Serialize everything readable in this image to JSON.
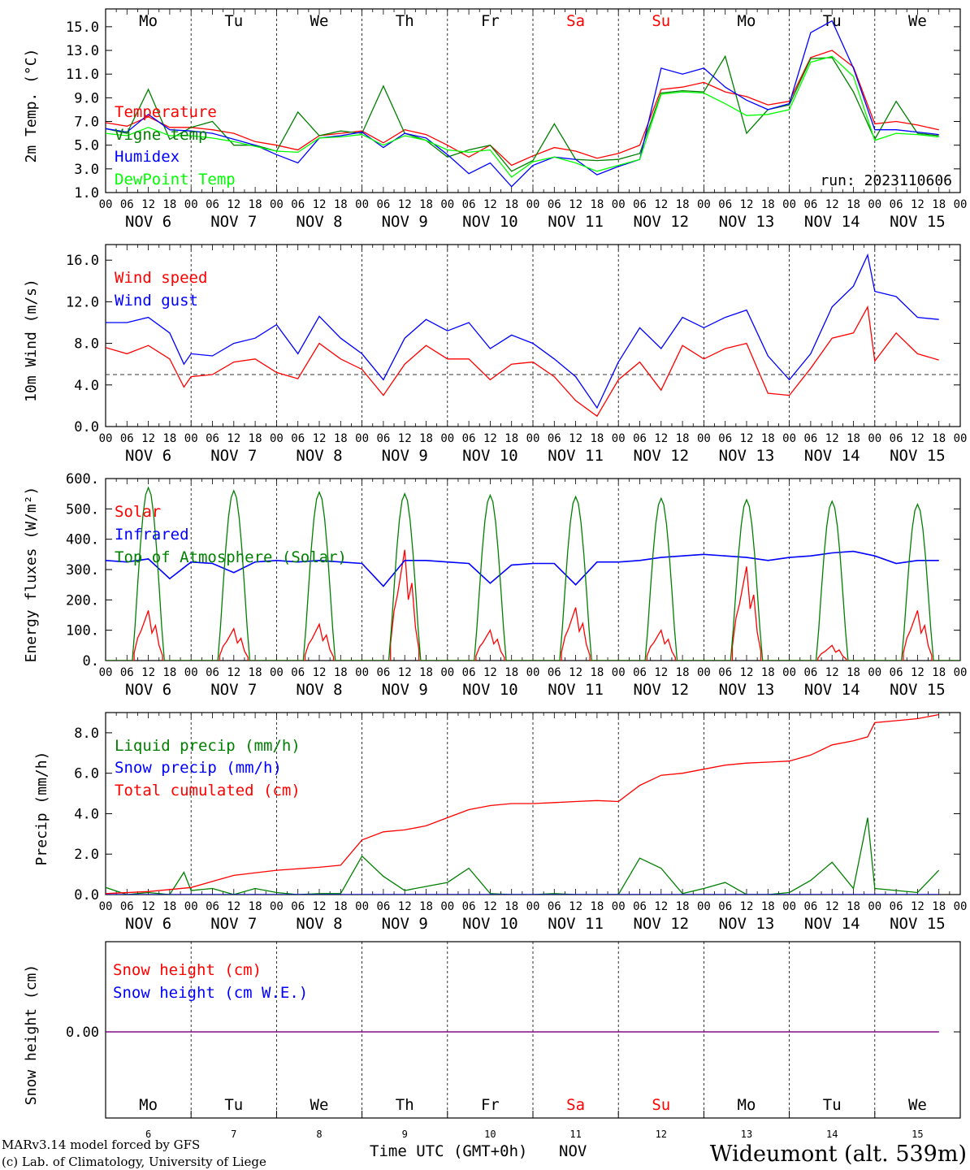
{
  "footer": {
    "model_line": "MARv3.14 model forced by GFS",
    "credit_line": "(c) Lab. of Climatology, University of Liege",
    "time_axis_label": "Time UTC (GMT+0h)",
    "month_label": "NOV",
    "station": "Wideumont (alt. 539m)"
  },
  "colors": {
    "red": "#ff0000",
    "green": "#008000",
    "blue": "#0000ff",
    "lime": "#00ff00",
    "purple": "#800080"
  },
  "chart_data": [
    {
      "type": "line",
      "ylabel": "2m Temp. (°C)",
      "ylim": [
        1.0,
        16.5
      ],
      "yticks": [
        1.0,
        3.0,
        5.0,
        7.0,
        9.0,
        11.0,
        13.0,
        15.0
      ],
      "run_label": "run: 2023110606",
      "x_unit": "hours since Nov 6 00 UTC",
      "series": [
        {
          "name": "Temperature",
          "color": "#ff0000",
          "x": [
            0,
            6,
            12,
            18,
            24,
            30,
            36,
            42,
            48,
            54,
            60,
            66,
            72,
            78,
            84,
            90,
            96,
            102,
            108,
            114,
            120,
            126,
            132,
            138,
            144,
            150,
            156,
            162,
            168,
            174,
            180,
            186,
            192,
            198,
            204,
            210,
            216,
            222,
            228,
            234
          ],
          "values": [
            6.9,
            6.6,
            7.4,
            6.5,
            6.5,
            6.3,
            6.0,
            5.3,
            5.0,
            4.6,
            5.8,
            6.0,
            6.2,
            5.2,
            6.3,
            5.9,
            5.0,
            4.0,
            5.0,
            3.3,
            4.1,
            4.8,
            4.5,
            3.9,
            4.3,
            5.0,
            9.7,
            9.9,
            10.3,
            9.5,
            9.1,
            8.4,
            8.7,
            12.4,
            13.0,
            11.6,
            6.8,
            7.0,
            6.7,
            6.3
          ]
        },
        {
          "name": "Vigne temp",
          "color": "#008000",
          "x": [
            0,
            6,
            12,
            18,
            24,
            30,
            36,
            42,
            48,
            54,
            60,
            66,
            72,
            78,
            84,
            90,
            96,
            102,
            108,
            114,
            120,
            126,
            132,
            138,
            144,
            150,
            156,
            162,
            168,
            174,
            180,
            186,
            192,
            198,
            204,
            210,
            216,
            222,
            228,
            234
          ],
          "values": [
            6.4,
            6.0,
            9.7,
            5.5,
            6.5,
            7.0,
            5.0,
            5.0,
            4.5,
            7.8,
            5.8,
            6.2,
            6.0,
            10.0,
            6.0,
            5.4,
            4.0,
            4.6,
            5.0,
            2.8,
            3.7,
            6.8,
            3.8,
            3.7,
            3.8,
            4.3,
            9.4,
            9.6,
            9.5,
            12.5,
            6.0,
            8.0,
            8.4,
            12.3,
            12.4,
            9.5,
            5.5,
            8.7,
            6.0,
            5.8
          ]
        },
        {
          "name": "Humidex",
          "color": "#0000ff",
          "x": [
            0,
            6,
            12,
            18,
            24,
            30,
            36,
            42,
            48,
            54,
            60,
            66,
            72,
            78,
            84,
            90,
            96,
            102,
            108,
            114,
            120,
            126,
            132,
            138,
            144,
            150,
            156,
            162,
            168,
            174,
            180,
            186,
            192,
            198,
            204,
            210,
            216,
            222,
            228,
            234
          ],
          "values": [
            6.4,
            6.1,
            7.6,
            6.3,
            6.2,
            6.0,
            5.5,
            5.0,
            4.2,
            3.5,
            5.6,
            5.8,
            6.1,
            4.8,
            6.0,
            5.6,
            4.2,
            2.6,
            3.5,
            1.5,
            3.3,
            4.0,
            3.8,
            2.5,
            3.2,
            3.8,
            11.5,
            11.0,
            11.5,
            9.9,
            8.8,
            8.0,
            8.5,
            14.5,
            15.5,
            11.5,
            6.3,
            6.3,
            6.1,
            5.9
          ]
        },
        {
          "name": "DewPoint Temp",
          "color": "#00ff00",
          "x": [
            0,
            6,
            12,
            18,
            24,
            30,
            36,
            42,
            48,
            54,
            60,
            66,
            72,
            78,
            84,
            90,
            96,
            102,
            108,
            114,
            120,
            126,
            132,
            138,
            144,
            150,
            156,
            162,
            168,
            174,
            180,
            186,
            192,
            198,
            204,
            210,
            216,
            222,
            228,
            234
          ],
          "values": [
            6.0,
            5.8,
            6.5,
            5.8,
            5.8,
            5.6,
            5.3,
            4.9,
            4.5,
            4.4,
            5.6,
            5.7,
            5.9,
            5.0,
            5.8,
            5.4,
            4.6,
            4.4,
            4.6,
            2.3,
            3.6,
            4.0,
            3.5,
            2.8,
            3.3,
            3.8,
            9.3,
            9.5,
            9.4,
            8.5,
            7.5,
            7.6,
            8.0,
            12.0,
            12.5,
            10.8,
            5.4,
            6.0,
            5.9,
            5.7
          ]
        }
      ]
    },
    {
      "type": "line",
      "ylabel": "10m Wind (m/s)",
      "ylim": [
        0,
        17.5
      ],
      "yticks": [
        0.0,
        4.0,
        8.0,
        12.0,
        16.0
      ],
      "reference_line": 5.0,
      "series": [
        {
          "name": "Wind speed",
          "color": "#ff0000",
          "x": [
            0,
            6,
            12,
            18,
            22,
            24,
            30,
            36,
            42,
            48,
            54,
            60,
            66,
            72,
            78,
            84,
            90,
            96,
            102,
            108,
            114,
            120,
            126,
            132,
            138,
            144,
            150,
            156,
            162,
            168,
            174,
            180,
            186,
            192,
            198,
            204,
            210,
            214,
            216,
            222,
            228,
            234
          ],
          "values": [
            7.6,
            7.0,
            7.8,
            6.5,
            3.8,
            4.8,
            5.0,
            6.2,
            6.5,
            5.2,
            4.6,
            8.0,
            6.5,
            5.5,
            3.0,
            6.0,
            7.8,
            6.5,
            6.5,
            4.5,
            6.0,
            6.2,
            4.8,
            2.5,
            1.0,
            4.5,
            6.2,
            3.5,
            7.8,
            6.5,
            7.5,
            8.0,
            3.2,
            3.0,
            5.6,
            8.5,
            9.0,
            11.5,
            6.3,
            9.0,
            7.0,
            6.4
          ]
        },
        {
          "name": "Wind gust",
          "color": "#0000ff",
          "x": [
            0,
            6,
            12,
            18,
            22,
            24,
            30,
            36,
            42,
            48,
            54,
            60,
            66,
            72,
            78,
            84,
            90,
            96,
            102,
            108,
            114,
            120,
            126,
            132,
            138,
            144,
            150,
            156,
            162,
            168,
            174,
            180,
            186,
            192,
            198,
            204,
            210,
            214,
            216,
            222,
            228,
            234
          ],
          "values": [
            10.0,
            10.0,
            10.5,
            9.0,
            6.0,
            7.0,
            6.8,
            8.0,
            8.5,
            9.8,
            7.0,
            10.6,
            8.5,
            7.0,
            4.5,
            8.5,
            10.3,
            9.2,
            10.0,
            7.5,
            8.8,
            8.0,
            6.5,
            4.8,
            1.8,
            6.2,
            9.5,
            7.5,
            10.5,
            9.5,
            10.5,
            11.2,
            6.8,
            4.5,
            7.0,
            11.5,
            13.5,
            16.5,
            13.0,
            12.5,
            10.5,
            10.3
          ]
        }
      ]
    },
    {
      "type": "line",
      "ylabel": "Energy fluxes (W/m²)",
      "ylim": [
        0,
        600
      ],
      "yticks": [
        0,
        100,
        200,
        300,
        400,
        500,
        600
      ],
      "ytick_labels": [
        "0.",
        "100.",
        "200.",
        "300.",
        "400.",
        "500.",
        "600."
      ],
      "series": [
        {
          "name": "Solar",
          "color": "#ff0000",
          "daily_peaks": [
            165,
            105,
            120,
            365,
            100,
            175,
            100,
            310,
            50,
            165
          ]
        },
        {
          "name": "Infrared",
          "color": "#0000ff",
          "x": [
            0,
            6,
            12,
            18,
            24,
            30,
            36,
            42,
            48,
            54,
            60,
            66,
            72,
            78,
            84,
            90,
            96,
            102,
            108,
            114,
            120,
            126,
            132,
            138,
            144,
            150,
            156,
            162,
            168,
            174,
            180,
            186,
            192,
            198,
            204,
            210,
            216,
            222,
            228,
            234
          ],
          "values": [
            330,
            325,
            335,
            270,
            325,
            320,
            290,
            325,
            330,
            325,
            330,
            325,
            320,
            245,
            330,
            330,
            325,
            320,
            255,
            315,
            320,
            320,
            250,
            325,
            325,
            330,
            340,
            345,
            350,
            345,
            340,
            330,
            340,
            345,
            355,
            360,
            345,
            320,
            330,
            330
          ]
        },
        {
          "name": "Top of Atmosphere (Solar)",
          "color": "#008000",
          "daily_peaks": [
            570,
            560,
            555,
            550,
            545,
            540,
            535,
            530,
            525,
            515
          ]
        }
      ]
    },
    {
      "type": "line",
      "ylabel": "Precip (mm/h)",
      "ylim": [
        0,
        9.0
      ],
      "yticks": [
        0.0,
        2.0,
        4.0,
        6.0,
        8.0
      ],
      "series": [
        {
          "name": "Liquid precip (mm/h)",
          "color": "#008000",
          "x": [
            0,
            6,
            12,
            18,
            22,
            24,
            30,
            36,
            42,
            48,
            54,
            60,
            66,
            72,
            78,
            84,
            90,
            96,
            102,
            108,
            114,
            120,
            126,
            132,
            138,
            144,
            150,
            156,
            162,
            168,
            174,
            180,
            186,
            192,
            198,
            204,
            210,
            214,
            216,
            222,
            228,
            234
          ],
          "values": [
            0.35,
            0.0,
            0.1,
            0.0,
            1.1,
            0.2,
            0.3,
            0.0,
            0.3,
            0.1,
            0.0,
            0.05,
            0.05,
            1.9,
            0.9,
            0.2,
            0.4,
            0.6,
            1.3,
            0.05,
            0.0,
            0.0,
            0.05,
            0.0,
            0.0,
            0.0,
            1.8,
            1.3,
            0.05,
            0.3,
            0.6,
            0.0,
            0.0,
            0.1,
            0.7,
            1.6,
            0.3,
            3.8,
            0.3,
            0.2,
            0.1,
            1.2
          ]
        },
        {
          "name": "Snow precip (mm/h)",
          "color": "#0000ff",
          "x": [
            0,
            234
          ],
          "values": [
            0.0,
            0.0
          ]
        },
        {
          "name": "Total cumulated (cm)",
          "color": "#ff0000",
          "x": [
            0,
            12,
            24,
            36,
            48,
            60,
            66,
            72,
            78,
            84,
            90,
            96,
            102,
            108,
            114,
            120,
            126,
            132,
            138,
            144,
            150,
            156,
            162,
            168,
            174,
            180,
            186,
            192,
            198,
            204,
            210,
            214,
            216,
            222,
            228,
            234
          ],
          "values": [
            0.05,
            0.15,
            0.35,
            0.95,
            1.2,
            1.35,
            1.45,
            2.7,
            3.1,
            3.2,
            3.4,
            3.8,
            4.2,
            4.4,
            4.5,
            4.5,
            4.55,
            4.6,
            4.65,
            4.6,
            5.4,
            5.9,
            6.0,
            6.2,
            6.4,
            6.5,
            6.55,
            6.6,
            6.9,
            7.4,
            7.6,
            7.8,
            8.5,
            8.6,
            8.7,
            8.9
          ]
        }
      ]
    },
    {
      "type": "line",
      "ylabel": "Snow height (cm)",
      "yticks": [
        0.0
      ],
      "ytick_labels": [
        "0.00"
      ],
      "series": [
        {
          "name": "Snow height (cm)",
          "color": "#ff0000",
          "x": [
            0,
            234
          ],
          "values": [
            0.0,
            0.0
          ]
        },
        {
          "name": "Snow height (cm W.E.)",
          "color": "#0000ff",
          "x": [
            0,
            234
          ],
          "values": [
            0.0,
            0.0
          ]
        }
      ]
    }
  ],
  "days": [
    {
      "name": "Mo",
      "date": "NOV  6",
      "num": "6",
      "weekend": false
    },
    {
      "name": "Tu",
      "date": "NOV  7",
      "num": "7",
      "weekend": false
    },
    {
      "name": "We",
      "date": "NOV  8",
      "num": "8",
      "weekend": false
    },
    {
      "name": "Th",
      "date": "NOV  9",
      "num": "9",
      "weekend": false
    },
    {
      "name": "Fr",
      "date": "NOV 10",
      "num": "10",
      "weekend": false
    },
    {
      "name": "Sa",
      "date": "NOV 11",
      "num": "11",
      "weekend": true
    },
    {
      "name": "Su",
      "date": "NOV 12",
      "num": "12",
      "weekend": true
    },
    {
      "name": "Mo",
      "date": "NOV 13",
      "num": "13",
      "weekend": false
    },
    {
      "name": "Tu",
      "date": "NOV 14",
      "num": "14",
      "weekend": false
    },
    {
      "name": "We",
      "date": "NOV 15",
      "num": "15",
      "weekend": false
    }
  ],
  "hour_ticks": [
    "00",
    "06",
    "12",
    "18"
  ]
}
